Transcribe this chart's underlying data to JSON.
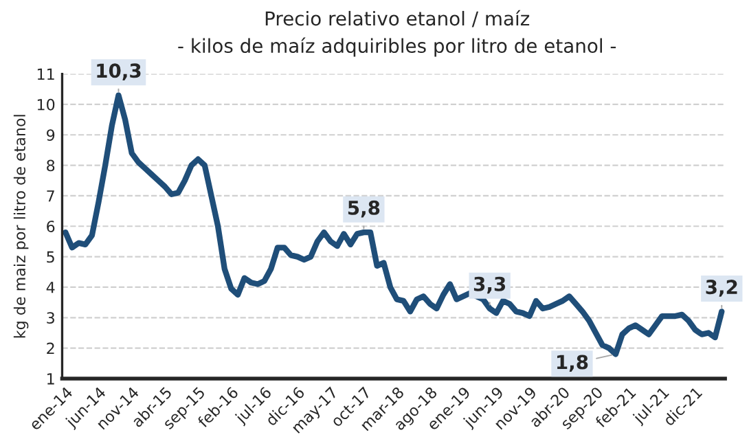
{
  "chart_data": {
    "type": "line",
    "title": "Precio relativo etanol / maíz",
    "subtitle": "- kilos de maíz adquiribles por litro de etanol -",
    "ylabel": "kg de maiz por litro de etanol",
    "categories": [
      "ene-14",
      null,
      null,
      null,
      null,
      "jun-14",
      null,
      null,
      null,
      null,
      "nov-14",
      null,
      null,
      null,
      null,
      "abr-15",
      null,
      null,
      null,
      null,
      "sep-15",
      null,
      null,
      null,
      null,
      "feb-16",
      null,
      null,
      null,
      null,
      "jul-16",
      null,
      null,
      null,
      null,
      "dic-16",
      null,
      null,
      null,
      null,
      "may-17",
      null,
      null,
      null,
      null,
      "oct-17",
      null,
      null,
      null,
      null,
      "mar-18",
      null,
      null,
      null,
      null,
      "ago-18",
      null,
      null,
      null,
      null,
      "ene-19",
      null,
      null,
      null,
      null,
      "jun-19",
      null,
      null,
      null,
      null,
      "nov-19",
      null,
      null,
      null,
      null,
      "abr-20",
      null,
      null,
      null,
      null,
      "sep-20",
      null,
      null,
      null,
      null,
      "feb-21",
      null,
      null,
      null,
      null,
      "jul-21",
      null,
      null,
      null,
      null,
      "dic-21",
      null,
      null,
      null,
      null
    ],
    "series": [
      {
        "color": "#1f4e79",
        "values": [
          5.8,
          5.3,
          5.45,
          5.4,
          5.7,
          6.8,
          8.0,
          9.3,
          10.3,
          9.5,
          8.4,
          8.1,
          7.9,
          7.7,
          7.5,
          7.3,
          7.05,
          7.1,
          7.5,
          8.0,
          8.2,
          8.0,
          7.0,
          6.0,
          4.6,
          3.95,
          3.75,
          4.3,
          4.15,
          4.1,
          4.2,
          4.6,
          5.3,
          5.3,
          5.05,
          5.0,
          4.9,
          5.0,
          5.5,
          5.8,
          5.5,
          5.35,
          5.75,
          5.4,
          5.75,
          5.8,
          5.8,
          4.7,
          4.8,
          4.0,
          3.6,
          3.55,
          3.2,
          3.6,
          3.7,
          3.45,
          3.3,
          3.75,
          4.1,
          3.6,
          3.7,
          3.8,
          3.7,
          3.6,
          3.3,
          3.15,
          3.55,
          3.45,
          3.2,
          3.15,
          3.05,
          3.55,
          3.3,
          3.35,
          3.45,
          3.55,
          3.7,
          3.45,
          3.2,
          2.9,
          2.5,
          2.1,
          2.0,
          1.8,
          2.45,
          2.65,
          2.75,
          2.6,
          2.45,
          2.75,
          3.05,
          3.05,
          3.05,
          3.1,
          2.9,
          2.6,
          2.45,
          2.5,
          2.35,
          3.2
        ],
        "value_labels": [
          null,
          null,
          null,
          null,
          null,
          null,
          null,
          null,
          "10,3",
          null,
          null,
          null,
          null,
          null,
          null,
          null,
          null,
          null,
          null,
          null,
          null,
          null,
          null,
          null,
          null,
          null,
          null,
          null,
          null,
          null,
          null,
          null,
          null,
          null,
          null,
          null,
          null,
          null,
          null,
          null,
          null,
          null,
          null,
          null,
          null,
          "5,8",
          null,
          null,
          null,
          null,
          null,
          null,
          null,
          null,
          null,
          null,
          null,
          null,
          null,
          null,
          null,
          null,
          null,
          null,
          "3,3",
          null,
          null,
          null,
          null,
          null,
          null,
          null,
          null,
          null,
          null,
          null,
          null,
          null,
          null,
          null,
          null,
          null,
          null,
          "1,8",
          null,
          null,
          null,
          null,
          null,
          null,
          null,
          null,
          null,
          null,
          null,
          null,
          null,
          null,
          null,
          "3,2"
        ]
      }
    ],
    "ylim": [
      1,
      11
    ],
    "yticks": [
      1,
      2,
      3,
      4,
      5,
      6,
      7,
      8,
      9,
      10,
      11
    ],
    "grid": "y",
    "legend": false,
    "marker": "none",
    "line_style": "solid"
  }
}
